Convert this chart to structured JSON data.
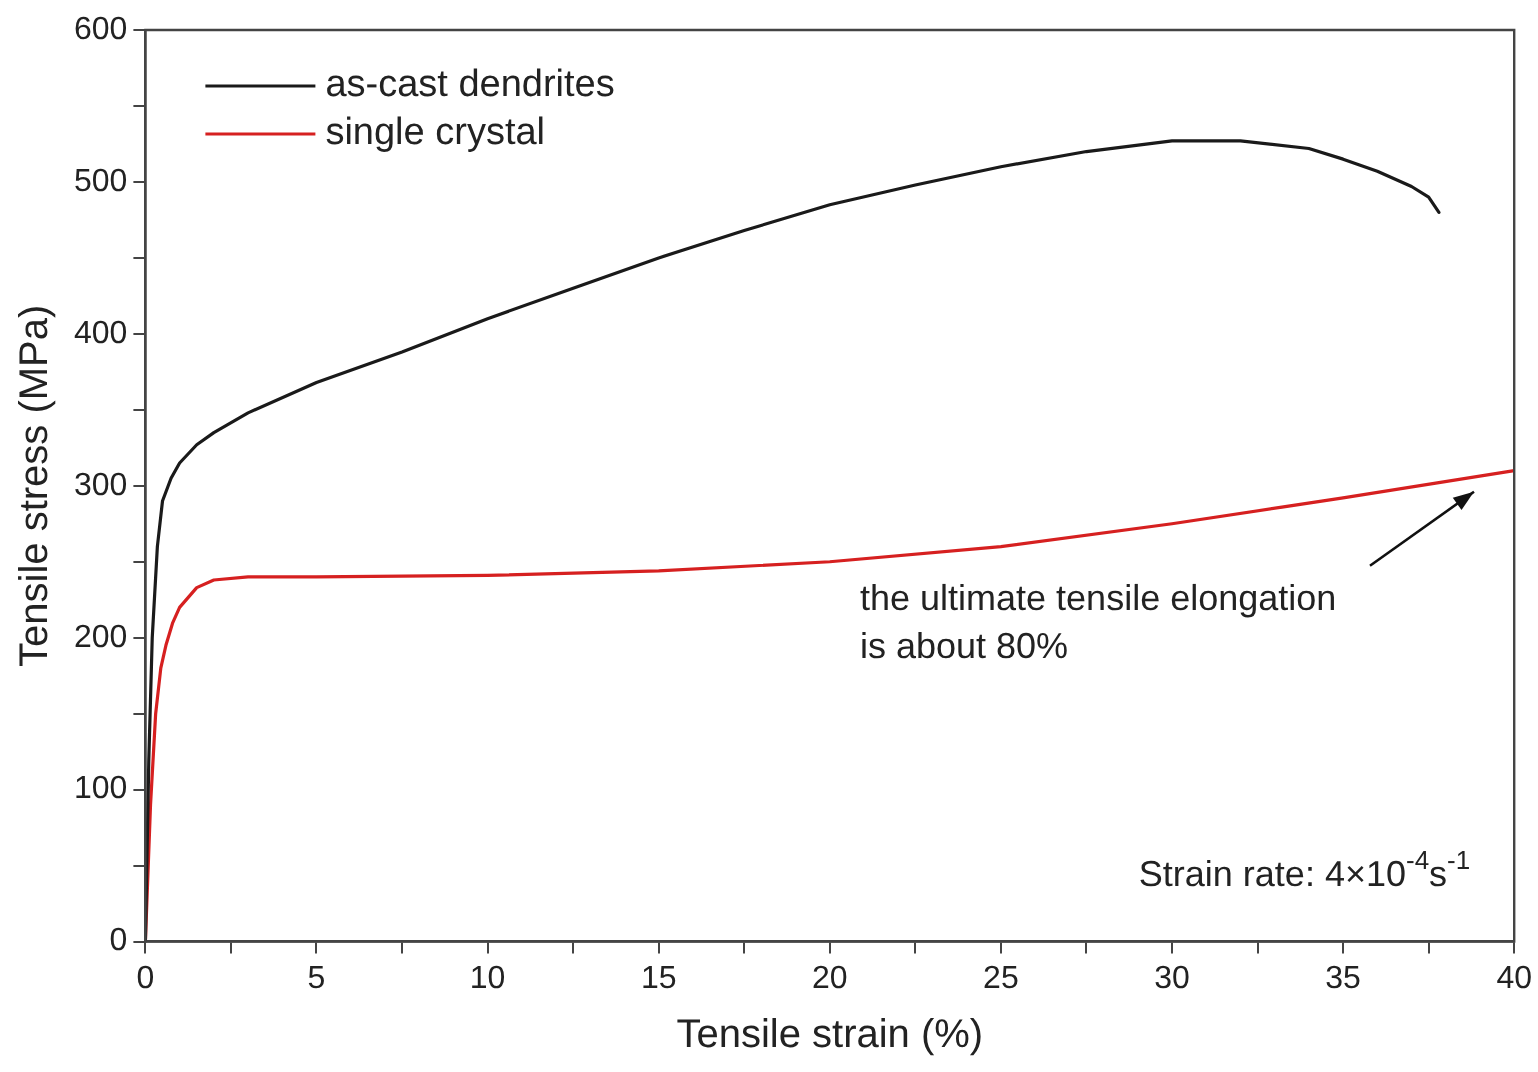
{
  "chart_data": {
    "type": "line",
    "xlabel": "Tensile strain (%)",
    "ylabel": "Tensile stress (MPa)",
    "xlim": [
      0,
      40
    ],
    "ylim": [
      0,
      600
    ],
    "xticks": [
      0,
      {
        "value": 2.5,
        "label": null
      },
      5,
      {
        "value": 7.5,
        "label": null
      },
      10,
      {
        "value": 12.5,
        "label": null
      },
      15,
      {
        "value": 17.5,
        "label": null
      },
      20,
      {
        "value": 22.5,
        "label": null
      },
      25,
      {
        "value": 27.5,
        "label": null
      },
      30,
      {
        "value": 32.5,
        "label": null
      },
      35,
      {
        "value": 37.5,
        "label": null
      },
      40
    ],
    "yticks": [
      0,
      {
        "value": 50,
        "label": null
      },
      100,
      {
        "value": 150,
        "label": null
      },
      200,
      {
        "value": 250,
        "label": null
      },
      300,
      {
        "value": 350,
        "label": null
      },
      400,
      {
        "value": 450,
        "label": null
      },
      500,
      {
        "value": 550,
        "label": null
      },
      600
    ],
    "grid": false,
    "legend": "top left",
    "marker": "none",
    "line_style": "solid",
    "series": [
      {
        "name": "as-cast dendrites",
        "color": "#1a1a1a",
        "x": [
          0,
          0.1,
          0.2,
          0.35,
          0.5,
          0.75,
          1,
          1.5,
          2,
          3,
          5,
          7.5,
          10,
          12.5,
          15,
          17.5,
          20,
          22.5,
          25,
          27.5,
          30,
          32,
          34,
          35,
          36,
          37,
          37.5,
          37.8
        ],
        "values": [
          0,
          120,
          200,
          260,
          290,
          305,
          315,
          327,
          335,
          348,
          368,
          388,
          410,
          430,
          450,
          468,
          485,
          498,
          510,
          520,
          527,
          527,
          522,
          515,
          507,
          497,
          490,
          480
        ]
      },
      {
        "name": "single crystal",
        "color": "#d62020",
        "x": [
          0,
          0.15,
          0.3,
          0.45,
          0.6,
          0.8,
          1,
          1.5,
          2,
          3,
          5,
          10,
          15,
          20,
          25,
          30,
          35,
          40
        ],
        "values": [
          0,
          90,
          150,
          180,
          195,
          210,
          220,
          233,
          238,
          240,
          240,
          241,
          244,
          250,
          260,
          275,
          292,
          310
        ]
      }
    ],
    "annotations": [
      {
        "text": "the ultimate tensile elongation\nis about 80%",
        "x": 39,
        "y": 300
      },
      "Strain rate: 4×10$^{-4}$s$^{-1}$"
    ]
  }
}
